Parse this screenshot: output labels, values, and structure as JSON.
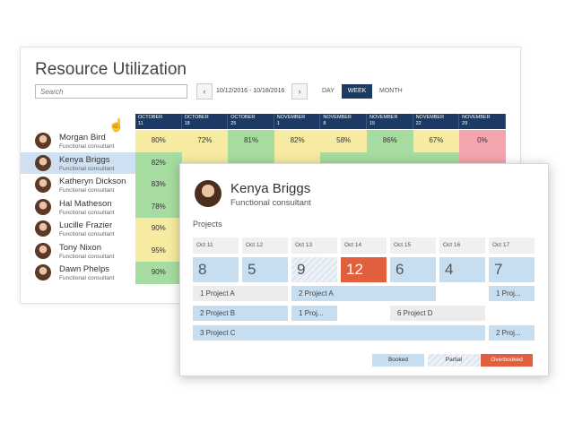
{
  "utilization": {
    "title": "Resource Utilization",
    "search_placeholder": "Search",
    "date_range": "10/12/2016 - 10/18/2016",
    "views": {
      "day": "DAY",
      "week": "WEEK",
      "month": "MONTH"
    },
    "columns": [
      {
        "month": "OCTOBER",
        "day": "11"
      },
      {
        "month": "OCTOBER",
        "day": "18"
      },
      {
        "month": "OCTOBER",
        "day": "25"
      },
      {
        "month": "NOVEMBER",
        "day": "1"
      },
      {
        "month": "NOVEMBER",
        "day": "8"
      },
      {
        "month": "NOVEMBER",
        "day": "15"
      },
      {
        "month": "NOVEMBER",
        "day": "22"
      },
      {
        "month": "NOVEMBER",
        "day": "29"
      }
    ],
    "people": [
      {
        "name": "Morgan Bird",
        "role": "Functional consultant"
      },
      {
        "name": "Kenya Briggs",
        "role": "Functional consultant"
      },
      {
        "name": "Katheryn Dickson",
        "role": "Functional consultant"
      },
      {
        "name": "Hal Matheson",
        "role": "Functional consultant"
      },
      {
        "name": "Lucille Frazier",
        "role": "Functional consultant"
      },
      {
        "name": "Tony Nixon",
        "role": "Functional consultant"
      },
      {
        "name": "Dawn Phelps",
        "role": "Functional consultant"
      }
    ],
    "rows": [
      [
        {
          "v": "80%",
          "c": "yellow"
        },
        {
          "v": "72%",
          "c": "yellow"
        },
        {
          "v": "81%",
          "c": "green"
        },
        {
          "v": "82%",
          "c": "yellow"
        },
        {
          "v": "58%",
          "c": "yellow"
        },
        {
          "v": "86%",
          "c": "green"
        },
        {
          "v": "67%",
          "c": "yellow"
        },
        {
          "v": "0%",
          "c": "red"
        }
      ],
      [
        {
          "v": "82%",
          "c": "green"
        },
        {
          "v": "",
          "c": "yellow"
        },
        {
          "v": "",
          "c": "green"
        },
        {
          "v": "",
          "c": "yellow"
        },
        {
          "v": "",
          "c": "green"
        },
        {
          "v": "",
          "c": "green"
        },
        {
          "v": "",
          "c": "green"
        },
        {
          "v": "",
          "c": "red"
        }
      ],
      [
        {
          "v": "83%",
          "c": "green"
        },
        {
          "v": "",
          "c": "yellow"
        }
      ],
      [
        {
          "v": "78%",
          "c": "green"
        },
        {
          "v": "",
          "c": "yellow"
        }
      ],
      [
        {
          "v": "90%",
          "c": "yellow"
        },
        {
          "v": "",
          "c": "yellow"
        }
      ],
      [
        {
          "v": "95%",
          "c": "yellow"
        },
        {
          "v": "",
          "c": "yellow"
        }
      ],
      [
        {
          "v": "90%",
          "c": "green"
        },
        {
          "v": "",
          "c": "yellow"
        }
      ]
    ]
  },
  "card": {
    "name": "Kenya Briggs",
    "role": "Functional consultant",
    "projects_label": "Projects",
    "days": [
      "Oct 11",
      "Oct 12",
      "Oct 13",
      "Oct 14",
      "Oct 15",
      "Oct 16",
      "Oct 17"
    ],
    "counts": [
      {
        "v": "8",
        "state": "booked"
      },
      {
        "v": "5",
        "state": "booked"
      },
      {
        "v": "9",
        "state": "partial"
      },
      {
        "v": "12",
        "state": "overbooked"
      },
      {
        "v": "6",
        "state": "booked"
      },
      {
        "v": "4",
        "state": "booked"
      },
      {
        "v": "7",
        "state": "booked"
      }
    ],
    "bars": [
      {
        "label": "1  Project A",
        "start": 0,
        "span": 2,
        "row": 0,
        "style": "grey"
      },
      {
        "label": "2  Project A",
        "start": 2,
        "span": 3,
        "row": 0,
        "style": "blue"
      },
      {
        "label": "1  Proj...",
        "start": 6,
        "span": 1,
        "row": 0,
        "style": "blue"
      },
      {
        "label": "2  Project B",
        "start": 0,
        "span": 2,
        "row": 1,
        "style": "blue"
      },
      {
        "label": "1  Proj...",
        "start": 2,
        "span": 1,
        "row": 1,
        "style": "blue"
      },
      {
        "label": "6  Project D",
        "start": 4,
        "span": 2,
        "row": 1,
        "style": "grey"
      },
      {
        "label": "3  Project C",
        "start": 0,
        "span": 6,
        "row": 2,
        "style": "blue"
      },
      {
        "label": "2  Proj...",
        "start": 6,
        "span": 1,
        "row": 2,
        "style": "blue"
      }
    ],
    "legend": {
      "booked": "Booked",
      "partial": "Partial",
      "overbooked": "Overbooked"
    }
  },
  "colors": {
    "header_navy": "#1c3a63",
    "green": "#a6dca0",
    "yellow": "#f6eba0",
    "red": "#f5a5ad",
    "booked": "#c7ddf0",
    "overbooked": "#e25f3e"
  },
  "icons": [
    "chevron-left-icon",
    "chevron-right-icon",
    "hand-cursor-icon"
  ]
}
